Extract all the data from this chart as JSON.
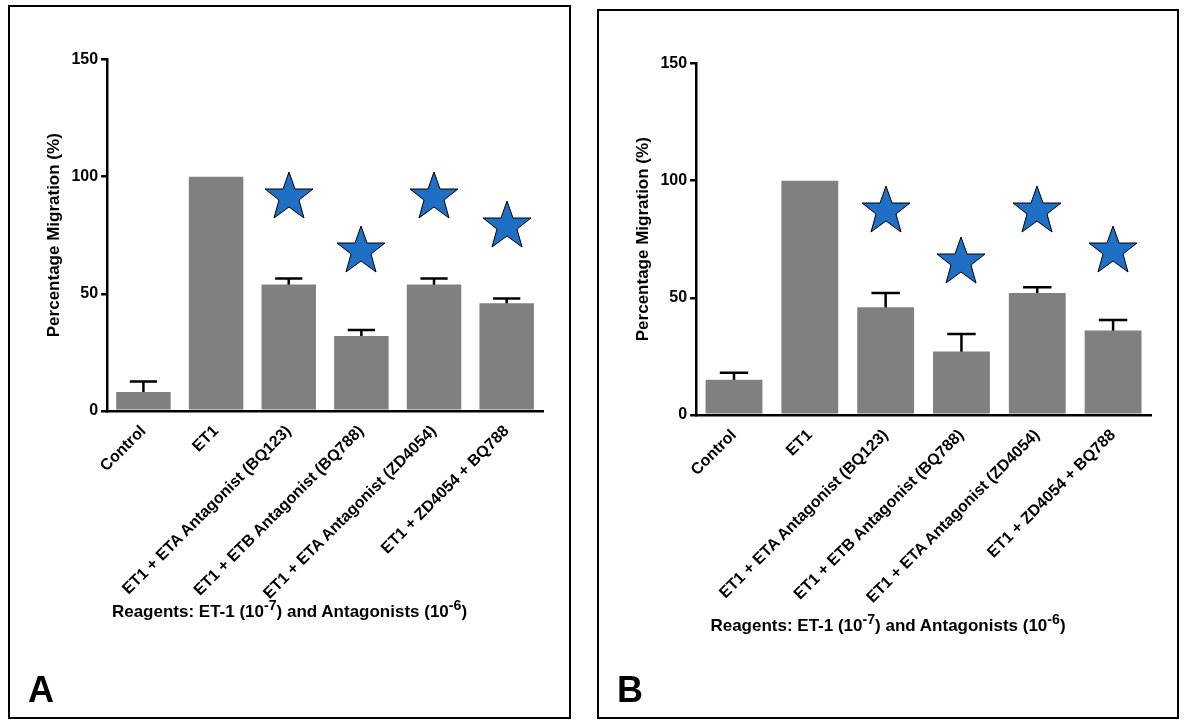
{
  "chart_data": [
    {
      "type": "bar",
      "categories": [
        "Control",
        "ET1",
        "ET1 + ETA Antagonist (BQ123)",
        "ET1 + ETB Antagonist (BQ788)",
        "ET1 + ETA Antagonist (ZD4054)",
        "ET1 + ZD4054 + BQ788"
      ],
      "values": [
        8,
        100,
        54,
        32,
        54,
        46
      ],
      "errors": [
        4.5,
        0,
        2.5,
        2.5,
        2.5,
        2
      ],
      "color": "#808080",
      "ylabel": "Percentage Migration (%)",
      "xlabel": "Reagents: ET-1 (10$^{-7}$) and Antagonists (10$^{-6}$)",
      "ylim": [
        0,
        150
      ],
      "yticks": [
        0,
        50,
        100,
        150
      ],
      "grid": false,
      "legend": false,
      "annotations": [
        "A"
      ]
    },
    {
      "type": "bar",
      "categories": [
        "Control",
        "ET1",
        "ET1 + ETA Antagonist (BQ123)",
        "ET1 + ETB Antagonist (BQ788)",
        "ET1 + ETA Antagonist (ZD4054)",
        "ET1 + ZD4054 + BQ788"
      ],
      "values": [
        15,
        100,
        46,
        27,
        52,
        36
      ],
      "errors": [
        3,
        0,
        6,
        7.5,
        2.5,
        4.5
      ],
      "color": "#808080",
      "ylabel": "Percentage Migration (%)",
      "xlabel": "Reagents: ET-1 (10$^{-7}$) and Antagonists (10$^{-6}$)",
      "ylim": [
        0,
        150
      ],
      "yticks": [
        0,
        50,
        100,
        150
      ],
      "grid": false,
      "legend": false,
      "annotations": [
        "B"
      ]
    }
  ]
}
